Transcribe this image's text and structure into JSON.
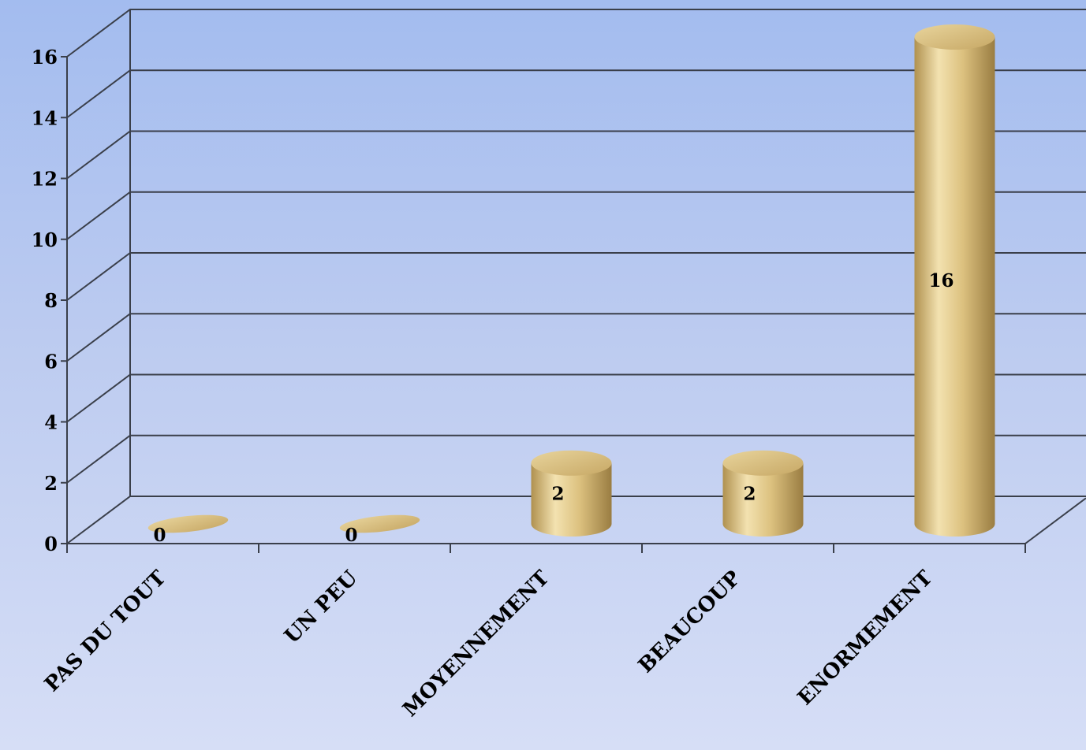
{
  "chart_data": {
    "type": "bar",
    "style": "3d-cylinder",
    "categories": [
      "PAS DU TOUT",
      "UN PEU",
      "MOYENNEMENT",
      "BEAUCOUP",
      "ENORMEMENT"
    ],
    "values": [
      0,
      0,
      2,
      2,
      16
    ],
    "data_labels": [
      "0",
      "0",
      "2",
      "2",
      "16"
    ],
    "ylim": [
      0,
      16
    ],
    "yticks": [
      "0",
      "2",
      "4",
      "6",
      "8",
      "10",
      "12",
      "14",
      "16"
    ],
    "grid": true,
    "legend": "none",
    "colors": {
      "bar_light": "#f3e2b0",
      "bar_mid": "#dcc17f",
      "bar_dark": "#b0914f",
      "grid": "#3a3f4a"
    }
  }
}
